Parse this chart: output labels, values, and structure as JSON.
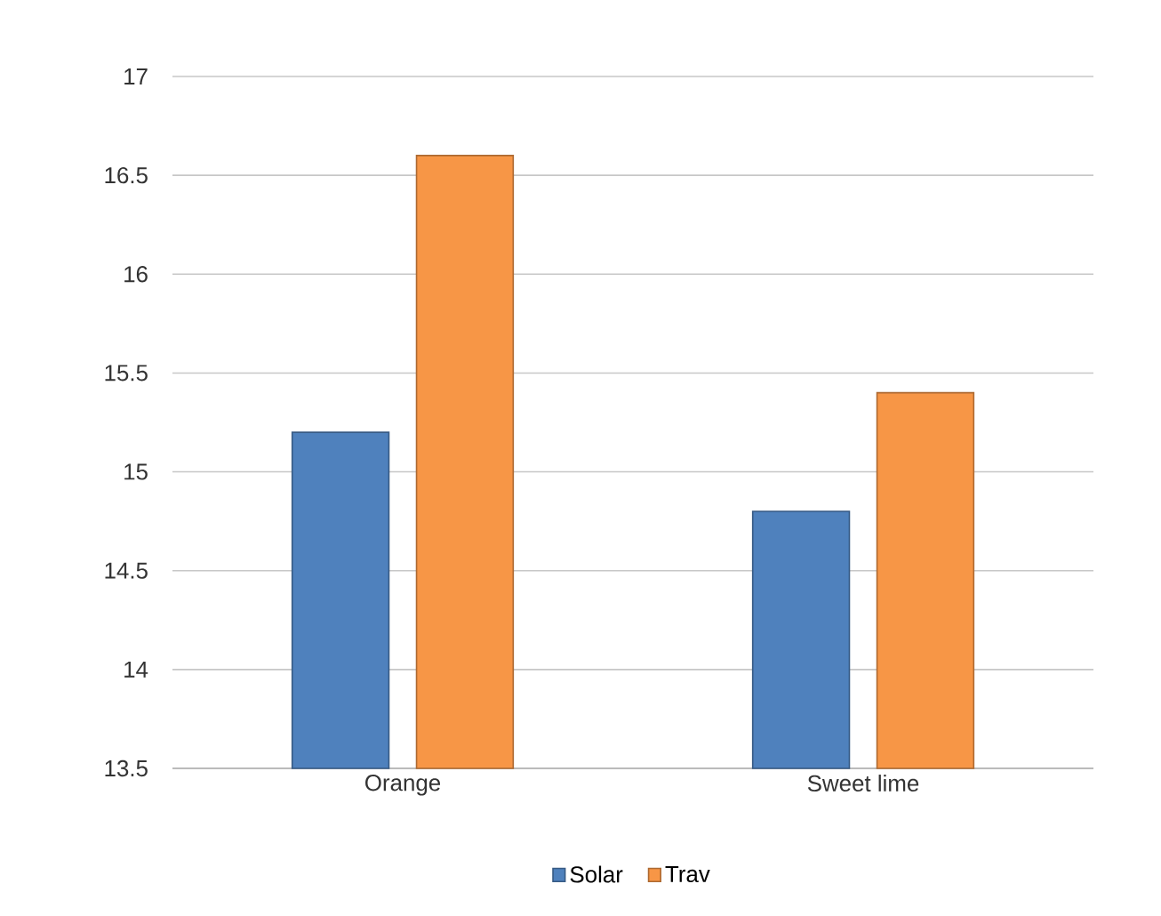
{
  "chart_data": {
    "type": "bar",
    "categories": [
      "Orange",
      "Sweet lime"
    ],
    "series": [
      {
        "name": "Solar",
        "color": "#4f81bd",
        "values": [
          15.2,
          14.8
        ]
      },
      {
        "name": "Trav",
        "color": "#f79646",
        "values": [
          16.6,
          15.4
        ]
      }
    ],
    "ylim": [
      13.5,
      17
    ],
    "yticks": [
      13.5,
      14,
      14.5,
      15,
      15.5,
      16,
      16.5,
      17
    ],
    "grid": "y",
    "legend": "bottom"
  }
}
